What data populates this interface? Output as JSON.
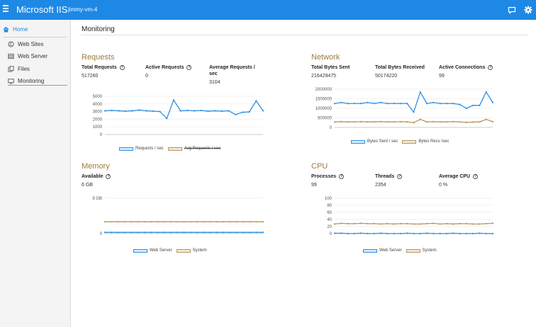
{
  "app": {
    "title": "Microsoft IIS",
    "server": "jimmy-vm-4",
    "icons": [
      "hamburger-icon",
      "chat-icon",
      "gear-icon"
    ]
  },
  "sidebar": {
    "home": "Home",
    "items": [
      {
        "label": "Web Sites",
        "icon": "globe-icon"
      },
      {
        "label": "Web Server",
        "icon": "server-icon"
      },
      {
        "label": "Files",
        "icon": "files-icon"
      },
      {
        "label": "Monitoring",
        "icon": "monitor-icon"
      }
    ]
  },
  "page": {
    "title": "Monitoring"
  },
  "colors": {
    "accent": "#1e88e5",
    "series_blue": "#2f8fe0",
    "series_tan": "#b8955a",
    "heading": "#9c7b3c"
  },
  "requests": {
    "title": "Requests",
    "stats": [
      {
        "label": "Total Requests",
        "value": "517260"
      },
      {
        "label": "Active Requests",
        "value": "0"
      },
      {
        "label": "Average Requests / sec",
        "value": "3104"
      }
    ],
    "legend": [
      "Requests / sec",
      "Avg Requests / sec"
    ]
  },
  "network": {
    "title": "Network",
    "stats": [
      {
        "label": "Total Bytes Sent",
        "value": "216429475"
      },
      {
        "label": "Total Bytes Received",
        "value": "50174220"
      },
      {
        "label": "Active Connections",
        "value": "99"
      }
    ],
    "legend": [
      "Bytes Sent / sec",
      "Bytes Recv /sec"
    ]
  },
  "memory": {
    "title": "Memory",
    "stats": [
      {
        "label": "Available",
        "value": "6 GB"
      }
    ],
    "legend": [
      "Web Server",
      "System"
    ]
  },
  "cpu": {
    "title": "CPU",
    "stats": [
      {
        "label": "Processes",
        "value": "99"
      },
      {
        "label": "Threads",
        "value": "2354"
      },
      {
        "label": "Average CPU",
        "value": "0 %"
      }
    ],
    "legend": [
      "Web Server",
      "System"
    ]
  },
  "chart_data": [
    {
      "id": "requests",
      "type": "line",
      "yticks": [
        "5000",
        "4000",
        "3000",
        "2000",
        "1000",
        "0"
      ],
      "ylim": [
        0,
        5000
      ],
      "series": [
        {
          "name": "Requests / sec",
          "color": "#2f8fe0",
          "values": [
            3100,
            3150,
            3100,
            3050,
            3100,
            3200,
            3100,
            3050,
            3000,
            2100,
            4500,
            3100,
            3150,
            3100,
            3150,
            3050,
            3100,
            3050,
            3100,
            2600,
            2900,
            2950,
            4400,
            3100
          ]
        }
      ]
    },
    {
      "id": "network",
      "type": "line",
      "yticks": [
        "2000000",
        "1500000",
        "1000000",
        "500000",
        "0"
      ],
      "ylim": [
        0,
        2000000
      ],
      "series": [
        {
          "name": "Bytes Sent / sec",
          "color": "#2f8fe0",
          "values": [
            1250000,
            1300000,
            1250000,
            1250000,
            1250000,
            1300000,
            1250000,
            1300000,
            1250000,
            1250000,
            1250000,
            1250000,
            800000,
            1850000,
            1250000,
            1300000,
            1250000,
            1250000,
            1250000,
            1200000,
            1000000,
            1150000,
            1150000,
            1850000,
            1300000
          ]
        },
        {
          "name": "Bytes Recv /sec",
          "color": "#b8955a",
          "values": [
            280000,
            300000,
            290000,
            290000,
            300000,
            290000,
            290000,
            300000,
            290000,
            290000,
            300000,
            290000,
            250000,
            420000,
            290000,
            300000,
            290000,
            290000,
            300000,
            290000,
            260000,
            280000,
            290000,
            420000,
            300000
          ]
        }
      ]
    },
    {
      "id": "memory",
      "type": "line",
      "yticks": [
        "9 GB",
        "0"
      ],
      "ylim": [
        0,
        9
      ],
      "series": [
        {
          "name": "Web Server",
          "color": "#2f8fe0",
          "values": [
            0.3,
            0.3,
            0.3,
            0.3,
            0.3,
            0.3,
            0.3,
            0.3,
            0.3,
            0.3,
            0.3,
            0.3,
            0.3,
            0.3,
            0.3,
            0.3,
            0.3,
            0.3,
            0.3,
            0.3,
            0.3,
            0.3,
            0.3,
            0.3,
            0.3
          ]
        },
        {
          "name": "System",
          "color": "#b8955a",
          "values": [
            3,
            3,
            3,
            3,
            3,
            3,
            3,
            3,
            3,
            3,
            3,
            3,
            3,
            3,
            3,
            3,
            3,
            3,
            3,
            3,
            3,
            3,
            3,
            3,
            3
          ]
        }
      ]
    },
    {
      "id": "cpu",
      "type": "line",
      "yticks": [
        "100",
        "80",
        "60",
        "40",
        "20",
        "0"
      ],
      "ylim": [
        0,
        100
      ],
      "series": [
        {
          "name": "Web Server",
          "color": "#2f8fe0",
          "values": [
            1,
            1,
            0,
            0,
            1,
            0,
            0,
            1,
            0,
            0,
            0,
            1,
            0,
            0,
            1,
            0,
            0,
            0,
            1,
            0,
            0,
            0,
            1,
            0,
            0
          ]
        },
        {
          "name": "System",
          "color": "#b8955a",
          "values": [
            27,
            29,
            28,
            28,
            29,
            28,
            28,
            27,
            28,
            27,
            28,
            28,
            27,
            27,
            28,
            29,
            27,
            28,
            27,
            28,
            28,
            27,
            27,
            28,
            29
          ]
        }
      ]
    }
  ]
}
